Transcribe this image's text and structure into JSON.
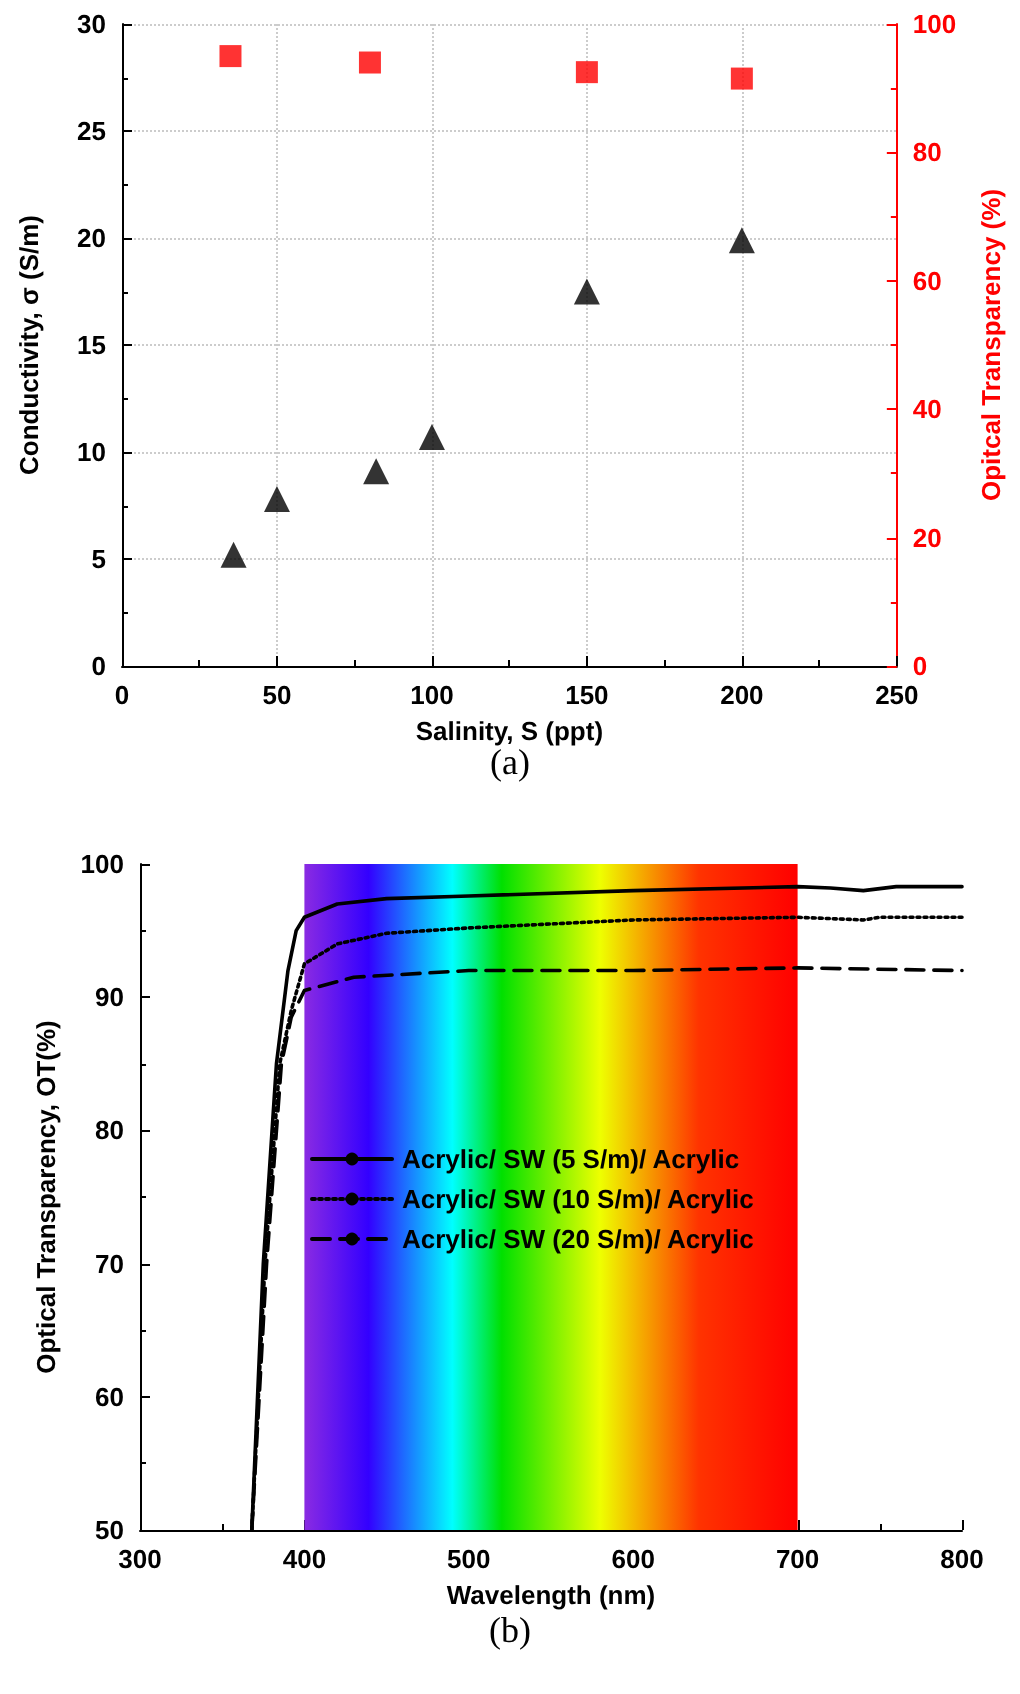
{
  "chart_data": [
    {
      "type": "scatter",
      "xlabel": "Salinity, S (ppt)",
      "ylabel": "Conductivity, σ (S/m)",
      "y2label": "Opitcal Transparency (%)",
      "xlim": [
        0,
        250
      ],
      "xticks": [
        0,
        50,
        100,
        150,
        200,
        250
      ],
      "ylim": [
        0,
        30
      ],
      "yticks": [
        0,
        5,
        10,
        15,
        20,
        25,
        30
      ],
      "y2lim": [
        0,
        100
      ],
      "y2ticks": [
        0,
        20,
        40,
        60,
        80,
        100
      ],
      "grid": true,
      "legend": false,
      "annotations": [
        "(a)"
      ],
      "series": [
        {
          "color": "#000000",
          "marker": "triangle",
          "x": [
            36,
            50,
            82,
            100,
            150,
            200
          ],
          "values": [
            5.2,
            7.8,
            9.1,
            10.7,
            17.5,
            19.9
          ]
        },
        {
          "color": "#ff0000",
          "marker": "square",
          "axis": "y2",
          "x": [
            35,
            80,
            150,
            200
          ],
          "values": [
            95,
            94,
            92.5,
            91.5
          ]
        }
      ]
    },
    {
      "type": "line",
      "xlabel": "Wavelength (nm)",
      "ylabel": "Optical Transparency, OT(%)",
      "xlim": [
        300,
        800
      ],
      "xticks": [
        300,
        400,
        500,
        600,
        700,
        800
      ],
      "ylim": [
        50,
        100
      ],
      "yticks": [
        50,
        60,
        70,
        80,
        90,
        100
      ],
      "grid": false,
      "legend": "center",
      "marker": "none",
      "annotations": [
        "(b)"
      ],
      "bands": [
        {
          "axis": "x",
          "from": 400,
          "to": 700
        }
      ],
      "series": [
        {
          "name": "Acrylic/ SW (5 S/m)/ Acrylic",
          "color": "#000000",
          "line_style": "solid",
          "x": [
            368,
            375,
            383,
            390,
            395,
            400,
            420,
            450,
            500,
            600,
            700,
            720,
            740,
            760,
            800
          ],
          "values": [
            50,
            70,
            85,
            92,
            95,
            96,
            97,
            97.4,
            97.6,
            98,
            98.3,
            98.2,
            98,
            98.3,
            98.3
          ]
        },
        {
          "name": "Acrylic/ SW (10 S/m)/ Acrylic",
          "color": "#000000",
          "line_style": "dotted",
          "x": [
            368,
            376,
            385,
            392,
            400,
            420,
            450,
            500,
            600,
            700,
            740,
            750,
            800
          ],
          "values": [
            50,
            70,
            85,
            89,
            92.5,
            94,
            94.8,
            95.2,
            95.8,
            96,
            95.8,
            96,
            96
          ]
        },
        {
          "name": "Acrylic/ SW (20 S/m)/ Acrylic",
          "color": "#000000",
          "line_style": "dashed",
          "x": [
            368,
            377,
            386,
            392,
            400,
            430,
            500,
            600,
            700,
            800
          ],
          "values": [
            50,
            70,
            85,
            88.5,
            90.5,
            91.5,
            92,
            92,
            92.2,
            92
          ]
        }
      ]
    }
  ]
}
